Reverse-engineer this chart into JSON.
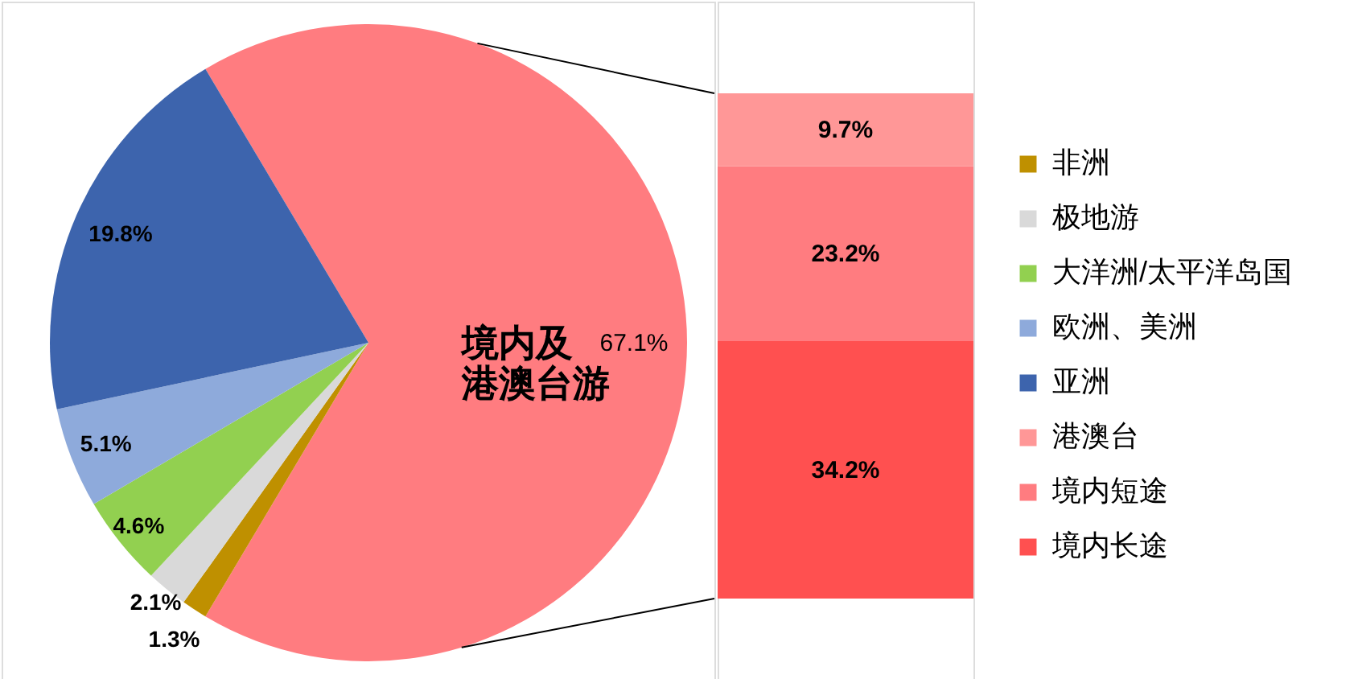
{
  "chart_data": [
    {
      "type": "pie",
      "categories": [
        "境内及港澳台游",
        "非洲",
        "极地游",
        "大洋洲/太平洋岛国",
        "欧洲、美洲",
        "亚洲"
      ],
      "values": [
        67.1,
        1.3,
        2.1,
        4.6,
        5.1,
        19.8
      ],
      "colors": [
        "#ff7c80",
        "#bf9000",
        "#d9d9d9",
        "#92d050",
        "#8eaadb",
        "#3d64ad"
      ],
      "value_labels": [
        "67.1%",
        "1.3%",
        "2.1%",
        "4.6%",
        "5.1%",
        "19.8%"
      ],
      "legend": "right"
    },
    {
      "type": "bar",
      "stacked": true,
      "categories": [
        null
      ],
      "series": [
        {
          "name": "境内长途",
          "color": "#ff5050",
          "values": [
            34.2
          ],
          "value_labels": [
            "34.2%"
          ]
        },
        {
          "name": "境内短途",
          "color": "#ff7c80",
          "values": [
            23.2
          ],
          "value_labels": [
            "23.2%"
          ]
        },
        {
          "name": "港澳台",
          "color": "#ff9797",
          "values": [
            9.7
          ],
          "value_labels": [
            "9.7%"
          ]
        }
      ],
      "legend": "right"
    }
  ]
}
